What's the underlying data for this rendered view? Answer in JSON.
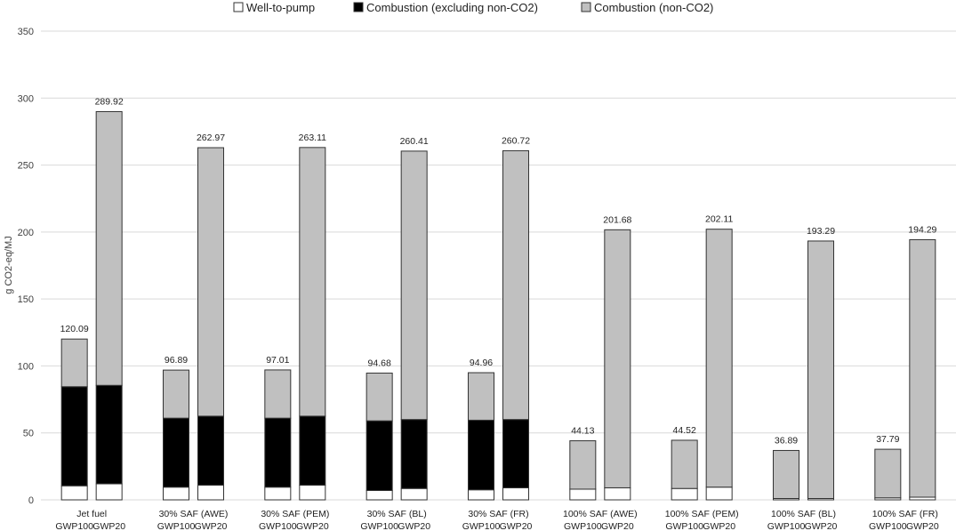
{
  "chart_data": {
    "type": "bar",
    "stacked": true,
    "ylabel": "g CO2-eq/MJ",
    "ylim": [
      0,
      350
    ],
    "yticks": [
      0,
      50,
      100,
      150,
      200,
      250,
      300,
      350
    ],
    "grid": true,
    "legend_position": "top",
    "colors": {
      "well_to_pump": "#ffffff",
      "combustion_co2": "#000000",
      "non_co2": "#c0c0c0",
      "outline": "#333333",
      "grid": "#d9d9d9"
    },
    "series_names": [
      "Well-to-pump",
      "Combustion (excluding non-CO2)",
      "Combustion (non-CO2)"
    ],
    "groups": [
      {
        "name": "Jet fuel",
        "bars": [
          {
            "metric": "GWP100",
            "values": [
              10.5,
              74.0,
              35.59
            ],
            "total": "120.09"
          },
          {
            "metric": "GWP20",
            "values": [
              12.0,
              73.5,
              204.42
            ],
            "total": "289.92"
          }
        ]
      },
      {
        "name": "30% SAF (AWE)",
        "bars": [
          {
            "metric": "GWP100",
            "values": [
              9.5,
              51.5,
              35.89
            ],
            "total": "96.89"
          },
          {
            "metric": "GWP20",
            "values": [
              11.0,
              51.5,
              200.47
            ],
            "total": "262.97"
          }
        ]
      },
      {
        "name": "30% SAF (PEM)",
        "bars": [
          {
            "metric": "GWP100",
            "values": [
              9.5,
              51.5,
              36.01
            ],
            "total": "97.01"
          },
          {
            "metric": "GWP20",
            "values": [
              11.0,
              51.5,
              200.61
            ],
            "total": "263.11"
          }
        ]
      },
      {
        "name": "30% SAF (BL)",
        "bars": [
          {
            "metric": "GWP100",
            "values": [
              7.0,
              52.0,
              35.68
            ],
            "total": "94.68"
          },
          {
            "metric": "GWP20",
            "values": [
              8.5,
              51.5,
              200.41
            ],
            "total": "260.41"
          }
        ]
      },
      {
        "name": "30% SAF (FR)",
        "bars": [
          {
            "metric": "GWP100",
            "values": [
              7.5,
              52.0,
              35.46
            ],
            "total": "94.96"
          },
          {
            "metric": "GWP20",
            "values": [
              9.0,
              51.0,
              200.72
            ],
            "total": "260.72"
          }
        ]
      },
      {
        "name": "100% SAF (AWE)",
        "bars": [
          {
            "metric": "GWP100",
            "values": [
              8.0,
              0.0,
              36.13
            ],
            "total": "44.13"
          },
          {
            "metric": "GWP20",
            "values": [
              9.0,
              0.0,
              192.68
            ],
            "total": "201.68"
          }
        ]
      },
      {
        "name": "100% SAF  (PEM)",
        "bars": [
          {
            "metric": "GWP100",
            "values": [
              8.5,
              0.0,
              36.02
            ],
            "total": "44.52"
          },
          {
            "metric": "GWP20",
            "values": [
              9.5,
              0.0,
              192.61
            ],
            "total": "202.11"
          }
        ]
      },
      {
        "name": "100% SAF (BL)",
        "bars": [
          {
            "metric": "GWP100",
            "values": [
              1.0,
              0.0,
              35.89
            ],
            "total": "36.89"
          },
          {
            "metric": "GWP20",
            "values": [
              1.0,
              0.0,
              192.29
            ],
            "total": "193.29"
          }
        ]
      },
      {
        "name": "100% SAF (FR)",
        "bars": [
          {
            "metric": "GWP100",
            "values": [
              1.5,
              0.0,
              36.29
            ],
            "total": "37.79"
          },
          {
            "metric": "GWP20",
            "values": [
              2.0,
              0.0,
              192.29
            ],
            "total": "194.29"
          }
        ]
      }
    ]
  }
}
